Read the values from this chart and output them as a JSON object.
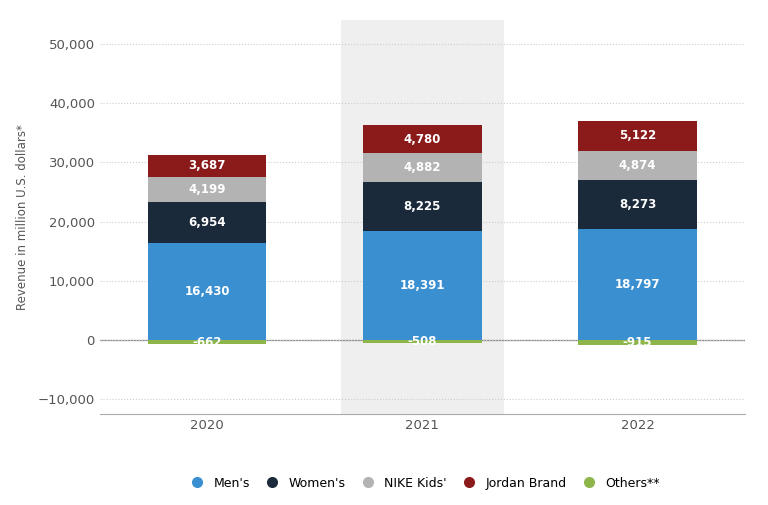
{
  "years": [
    "2020",
    "2021",
    "2022"
  ],
  "mens": [
    16430,
    18391,
    18797
  ],
  "womens": [
    6954,
    8225,
    8273
  ],
  "nike_kids": [
    4199,
    4882,
    4874
  ],
  "jordan": [
    3687,
    4780,
    5122
  ],
  "others": [
    -662,
    -508,
    -915
  ],
  "colors": {
    "mens": "#3a8fd1",
    "womens": "#1b2a3b",
    "nike_kids": "#b3b3b3",
    "jordan": "#8b1a1a",
    "others": "#8db54a"
  },
  "bar_width": 0.55,
  "ylabel": "Revenue in million U.S. dollars*",
  "ylim": [
    -12500,
    54000
  ],
  "yticks": [
    -10000,
    0,
    10000,
    20000,
    30000,
    40000,
    50000
  ],
  "legend_labels": [
    "Men's",
    "Women's",
    "NIKE Kids'",
    "Jordan Brand",
    "Others**"
  ],
  "label_fontsize": 8.5,
  "tick_fontsize": 9.5
}
